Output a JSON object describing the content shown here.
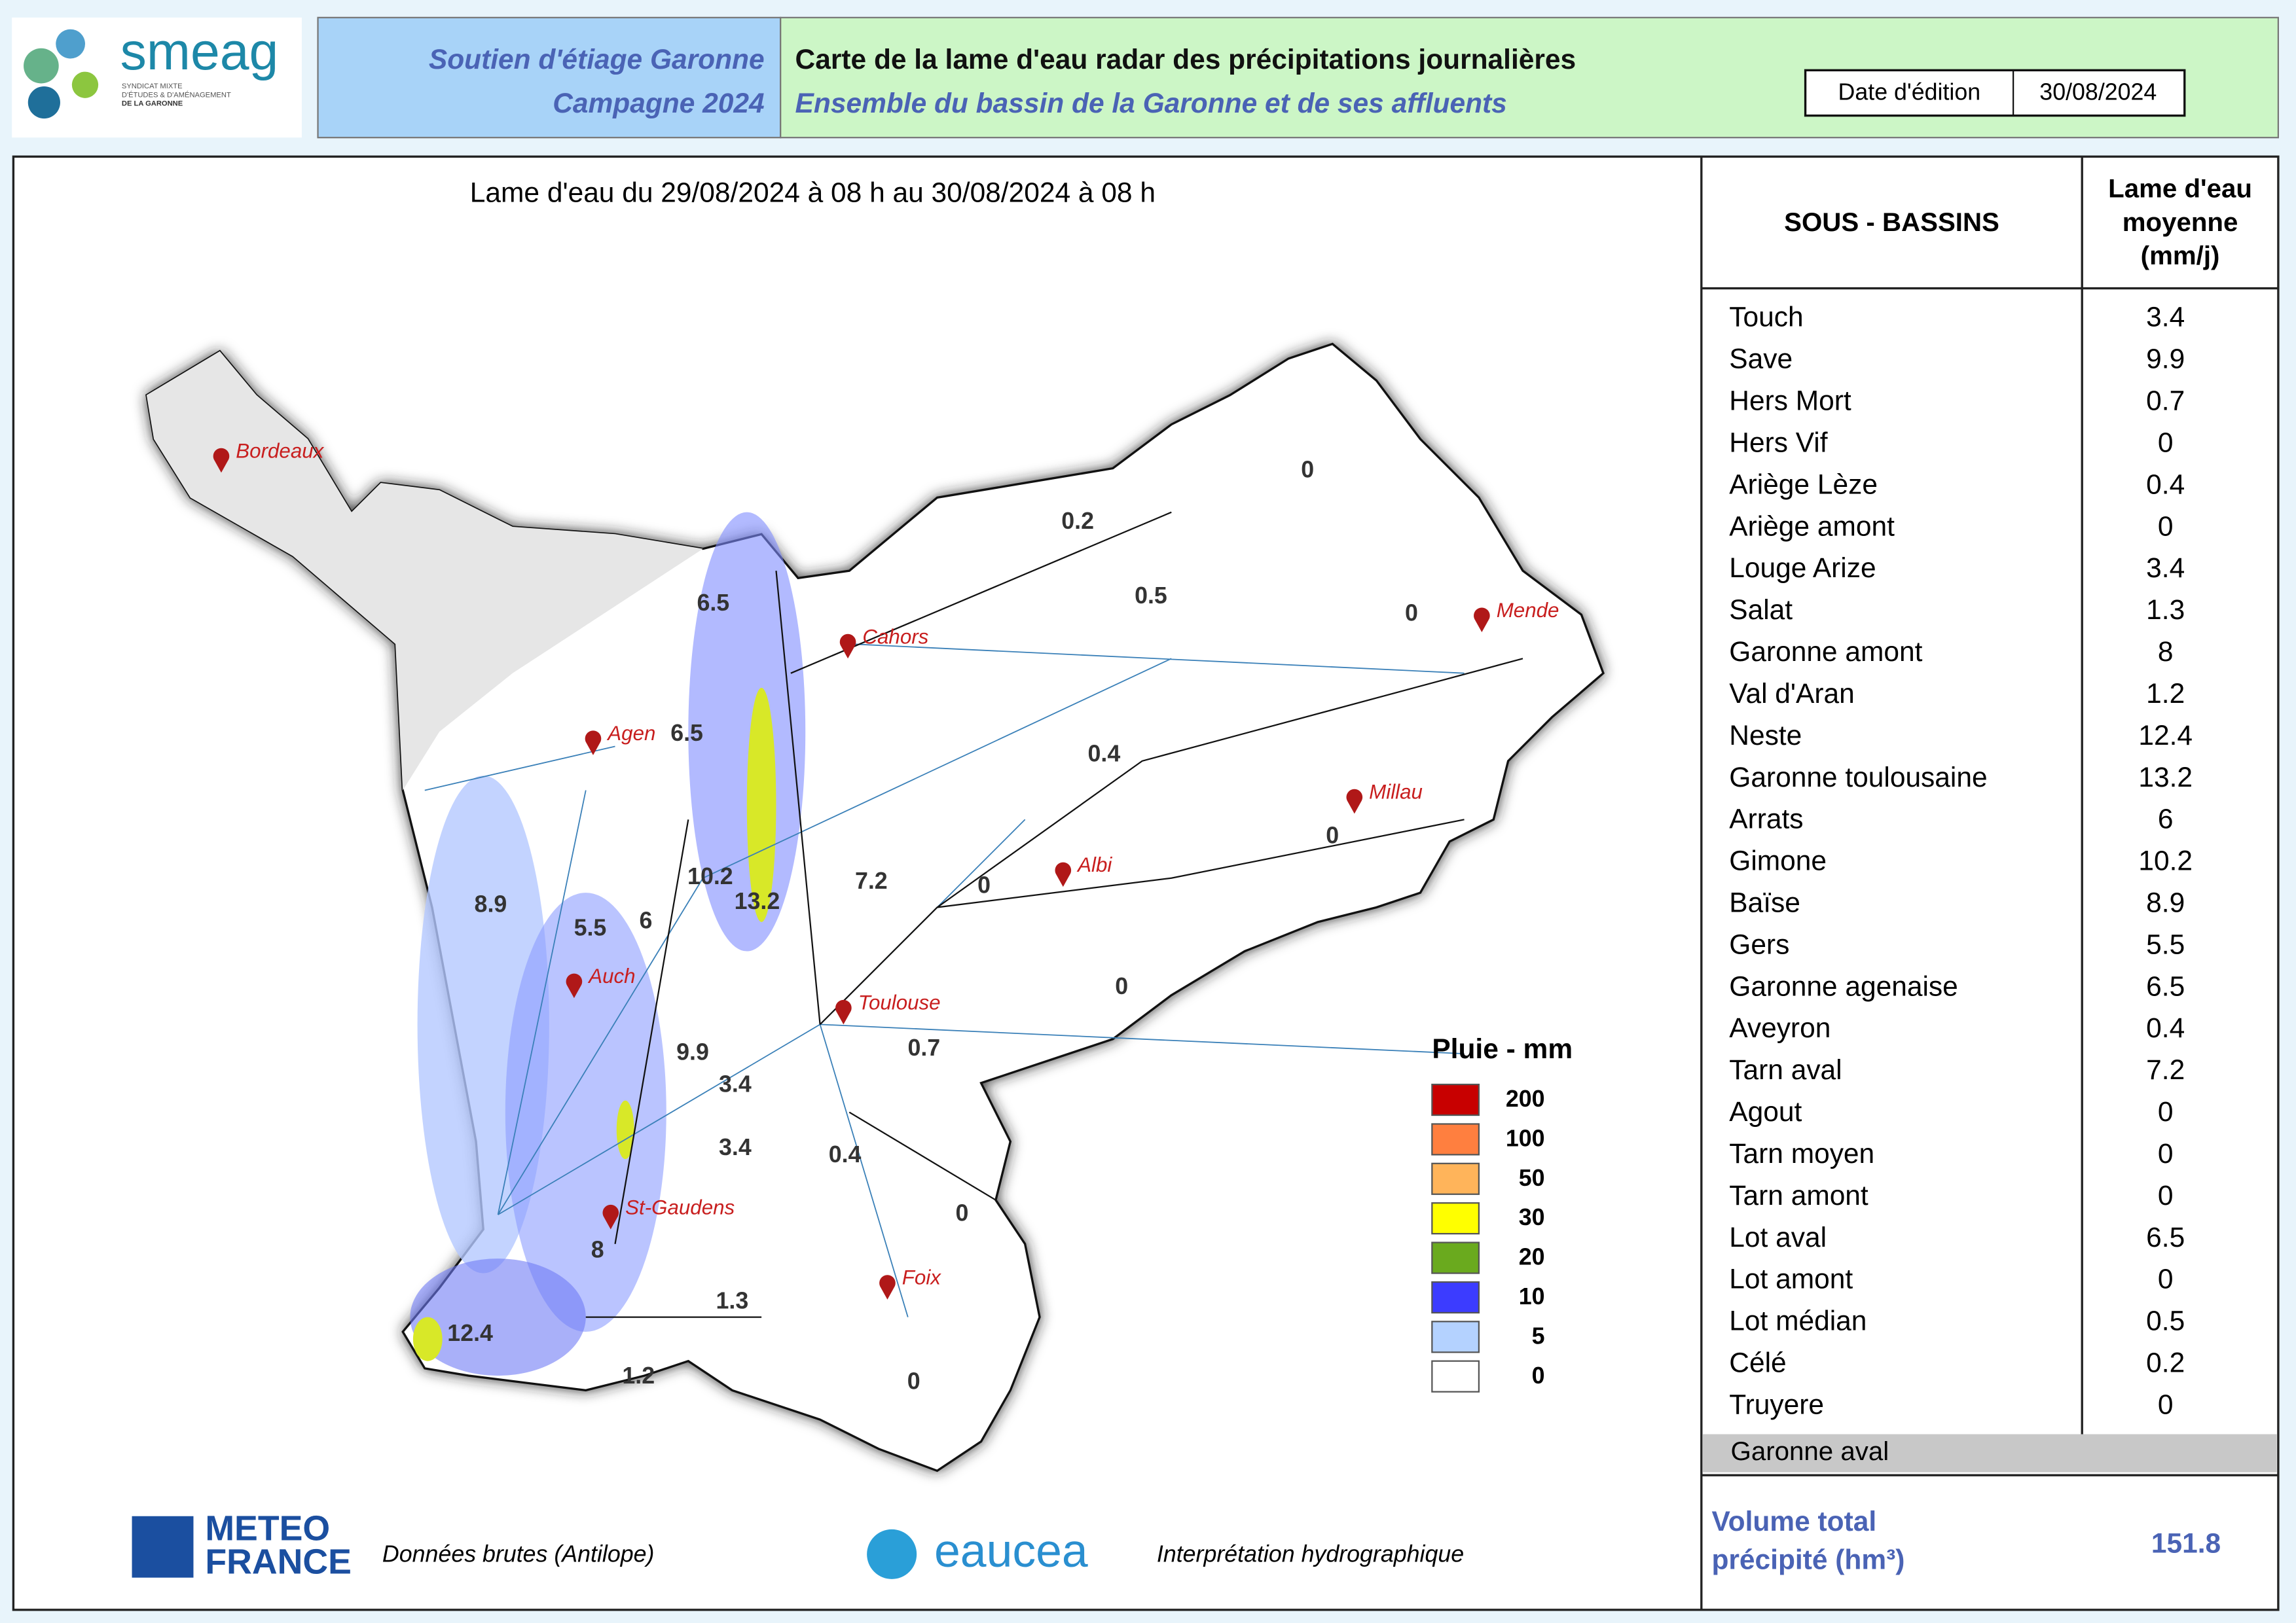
{
  "header": {
    "logo": "smeag",
    "logo_sub": [
      "SYNDICAT MIXTE",
      "D'ÉTUDES & D'AMÉNAGEMENT",
      "DE LA GARONNE"
    ],
    "program": "Soutien d'étiage Garonne",
    "campaign": "Campagne 2024",
    "title": "Carte de la lame d'eau radar des précipitations journalières",
    "subtitle": "Ensemble du bassin de la Garonne et de ses affluents",
    "date_label": "Date d'édition",
    "date": "30/08/2024"
  },
  "map": {
    "title": "Lame d'eau du 29/08/2024  à 08 h au 30/08/2024  à 08 h",
    "cities": [
      "Bordeaux",
      "Agen",
      "Cahors",
      "Mende",
      "Millau",
      "Albi",
      "Toulouse",
      "Auch",
      "St-Gaudens",
      "Foix"
    ],
    "labels": [
      0.2,
      0,
      0.5,
      0,
      6.5,
      6.5,
      0.4,
      0,
      0,
      7.2,
      10.2,
      13.2,
      8.9,
      5.5,
      6,
      0,
      0.7,
      9.9,
      3.4,
      3.4,
      0.4,
      0,
      8,
      1.3,
      12.4,
      1.2,
      0
    ]
  },
  "legend": {
    "title": "Pluie - mm",
    "items": [
      {
        "label": 200,
        "color": "#c80000"
      },
      {
        "label": 100,
        "color": "#ff7f3f"
      },
      {
        "label": 50,
        "color": "#ffb45a"
      },
      {
        "label": 30,
        "color": "#ffff00"
      },
      {
        "label": 20,
        "color": "#6aaa1e"
      },
      {
        "label": 10,
        "color": "#3c3cff"
      },
      {
        "label": 5,
        "color": "#b4d2ff"
      },
      {
        "label": 0,
        "color": "#ffffff"
      }
    ]
  },
  "table": {
    "header": [
      "SOUS - BASSINS",
      [
        "Lame d'eau",
        "moyenne",
        "(mm/j)"
      ]
    ],
    "rows": [
      [
        "Touch",
        3.4
      ],
      [
        "Save",
        9.9
      ],
      [
        "Hers Mort",
        0.7
      ],
      [
        "Hers Vif",
        0
      ],
      [
        "Ariège Lèze",
        0.4
      ],
      [
        "Ariège amont",
        0
      ],
      [
        "Louge Arize",
        3.4
      ],
      [
        "Salat",
        1.3
      ],
      [
        "Garonne amont",
        8
      ],
      [
        "Val d'Aran",
        1.2
      ],
      [
        "Neste",
        12.4
      ],
      [
        "Garonne toulousaine",
        13.2
      ],
      [
        "Arrats",
        6
      ],
      [
        "Gimone",
        10.2
      ],
      [
        "Baïse",
        8.9
      ],
      [
        "Gers",
        5.5
      ],
      [
        "Garonne agenaise",
        6.5
      ],
      [
        "Aveyron",
        0.4
      ],
      [
        "Tarn aval",
        7.2
      ],
      [
        "Agout",
        0
      ],
      [
        "Tarn moyen",
        0
      ],
      [
        "Tarn amont",
        0
      ],
      [
        "Lot aval",
        6.5
      ],
      [
        "Lot amont",
        0
      ],
      [
        "Lot médian",
        0.5
      ],
      [
        "Célé",
        0.2
      ],
      [
        "Truyere",
        0
      ]
    ],
    "group_row": "Garonne aval",
    "total_label": [
      "Volume total",
      "précipité (hm³)"
    ],
    "total": 151.8
  },
  "footer": {
    "meteo": [
      "METEO",
      "FRANCE"
    ],
    "meteo_note": "Données brutes (Antilope)",
    "eaucea": "eaucea",
    "eaucea_note": "Interprétation hydrographique"
  }
}
